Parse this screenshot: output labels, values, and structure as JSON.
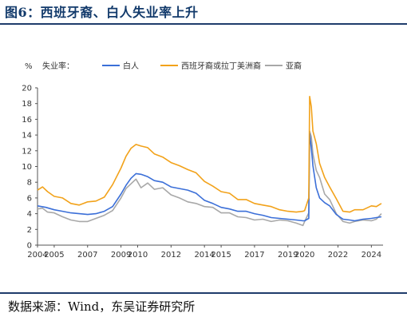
{
  "figure": {
    "title": "图6：西班牙裔、白人失业率上升",
    "source": "数据来源：Wind，东吴证券研究所"
  },
  "chart_data": {
    "type": "line",
    "unit_label": "%",
    "legend_title": "失业率：",
    "legend_placement": "top",
    "xlim": [
      2004,
      2024.7
    ],
    "ylim": [
      0,
      20
    ],
    "y_ticks": [
      0,
      2,
      4,
      6,
      8,
      10,
      12,
      14,
      16,
      18,
      20
    ],
    "x_ticks": [
      2004,
      2005,
      2007,
      2009,
      2010,
      2012,
      2014,
      2015,
      2017,
      2019,
      2020,
      2022,
      2024
    ],
    "x_tick_labels": [
      "2004",
      "2005",
      "2007",
      "2009",
      "2010",
      "2012",
      "2014",
      "2015",
      "2017",
      "2019",
      "2020",
      "2022",
      "2024"
    ],
    "grid": false,
    "series": [
      {
        "name": "白人",
        "color": "#3b6fd8",
        "points": [
          [
            2004.0,
            5.0
          ],
          [
            2004.5,
            4.8
          ],
          [
            2005.0,
            4.5
          ],
          [
            2005.5,
            4.3
          ],
          [
            2006.0,
            4.1
          ],
          [
            2006.5,
            4.0
          ],
          [
            2007.0,
            3.9
          ],
          [
            2007.5,
            4.0
          ],
          [
            2008.0,
            4.3
          ],
          [
            2008.5,
            4.9
          ],
          [
            2009.0,
            6.5
          ],
          [
            2009.3,
            7.6
          ],
          [
            2009.6,
            8.5
          ],
          [
            2009.9,
            9.1
          ],
          [
            2010.2,
            9.0
          ],
          [
            2010.6,
            8.7
          ],
          [
            2011.0,
            8.2
          ],
          [
            2011.5,
            8.0
          ],
          [
            2012.0,
            7.4
          ],
          [
            2012.5,
            7.2
          ],
          [
            2013.0,
            7.0
          ],
          [
            2013.5,
            6.6
          ],
          [
            2014.0,
            5.7
          ],
          [
            2014.5,
            5.3
          ],
          [
            2015.0,
            4.8
          ],
          [
            2015.5,
            4.6
          ],
          [
            2016.0,
            4.3
          ],
          [
            2016.5,
            4.3
          ],
          [
            2017.0,
            4.0
          ],
          [
            2017.5,
            3.8
          ],
          [
            2018.0,
            3.5
          ],
          [
            2018.5,
            3.4
          ],
          [
            2019.0,
            3.3
          ],
          [
            2019.5,
            3.2
          ],
          [
            2019.9,
            3.1
          ],
          [
            2020.0,
            3.1
          ],
          [
            2020.25,
            3.4
          ],
          [
            2020.3,
            14.2
          ],
          [
            2020.4,
            12.4
          ],
          [
            2020.5,
            10.1
          ],
          [
            2020.7,
            7.3
          ],
          [
            2020.9,
            6.0
          ],
          [
            2021.2,
            5.4
          ],
          [
            2021.5,
            5.0
          ],
          [
            2021.9,
            3.9
          ],
          [
            2022.3,
            3.3
          ],
          [
            2022.7,
            3.2
          ],
          [
            2023.0,
            3.1
          ],
          [
            2023.5,
            3.3
          ],
          [
            2024.0,
            3.4
          ],
          [
            2024.3,
            3.5
          ],
          [
            2024.6,
            3.6
          ]
        ]
      },
      {
        "name": "西班牙裔或拉丁美洲裔",
        "color": "#f2a21a",
        "points": [
          [
            2004.0,
            7.0
          ],
          [
            2004.3,
            7.4
          ],
          [
            2004.6,
            6.8
          ],
          [
            2005.0,
            6.2
          ],
          [
            2005.5,
            6.0
          ],
          [
            2006.0,
            5.3
          ],
          [
            2006.5,
            5.1
          ],
          [
            2007.0,
            5.5
          ],
          [
            2007.5,
            5.6
          ],
          [
            2008.0,
            6.1
          ],
          [
            2008.5,
            7.7
          ],
          [
            2009.0,
            9.8
          ],
          [
            2009.3,
            11.3
          ],
          [
            2009.6,
            12.3
          ],
          [
            2009.9,
            12.8
          ],
          [
            2010.2,
            12.6
          ],
          [
            2010.6,
            12.4
          ],
          [
            2011.0,
            11.6
          ],
          [
            2011.5,
            11.2
          ],
          [
            2012.0,
            10.5
          ],
          [
            2012.5,
            10.1
          ],
          [
            2013.0,
            9.6
          ],
          [
            2013.5,
            9.2
          ],
          [
            2014.0,
            8.1
          ],
          [
            2014.5,
            7.5
          ],
          [
            2015.0,
            6.8
          ],
          [
            2015.5,
            6.6
          ],
          [
            2016.0,
            5.8
          ],
          [
            2016.5,
            5.8
          ],
          [
            2017.0,
            5.3
          ],
          [
            2017.5,
            5.1
          ],
          [
            2018.0,
            4.9
          ],
          [
            2018.5,
            4.5
          ],
          [
            2019.0,
            4.3
          ],
          [
            2019.5,
            4.2
          ],
          [
            2019.9,
            4.3
          ],
          [
            2020.0,
            4.4
          ],
          [
            2020.25,
            6.0
          ],
          [
            2020.3,
            18.9
          ],
          [
            2020.4,
            17.6
          ],
          [
            2020.5,
            14.5
          ],
          [
            2020.7,
            12.9
          ],
          [
            2020.9,
            10.4
          ],
          [
            2021.2,
            8.6
          ],
          [
            2021.5,
            7.4
          ],
          [
            2021.9,
            5.9
          ],
          [
            2022.3,
            4.3
          ],
          [
            2022.7,
            4.2
          ],
          [
            2023.0,
            4.5
          ],
          [
            2023.5,
            4.5
          ],
          [
            2024.0,
            5.0
          ],
          [
            2024.3,
            4.9
          ],
          [
            2024.6,
            5.3
          ]
        ]
      },
      {
        "name": "亚裔",
        "color": "#a8a8a8",
        "points": [
          [
            2004.0,
            4.6
          ],
          [
            2004.3,
            4.7
          ],
          [
            2004.6,
            4.2
          ],
          [
            2005.0,
            4.1
          ],
          [
            2005.5,
            3.6
          ],
          [
            2006.0,
            3.2
          ],
          [
            2006.5,
            3.0
          ],
          [
            2007.0,
            3.0
          ],
          [
            2007.5,
            3.4
          ],
          [
            2008.0,
            3.8
          ],
          [
            2008.5,
            4.4
          ],
          [
            2009.0,
            6.0
          ],
          [
            2009.3,
            7.2
          ],
          [
            2009.6,
            7.8
          ],
          [
            2009.9,
            8.4
          ],
          [
            2010.2,
            7.3
          ],
          [
            2010.6,
            7.9
          ],
          [
            2011.0,
            7.1
          ],
          [
            2011.5,
            7.3
          ],
          [
            2012.0,
            6.4
          ],
          [
            2012.5,
            6.0
          ],
          [
            2013.0,
            5.5
          ],
          [
            2013.5,
            5.3
          ],
          [
            2014.0,
            4.9
          ],
          [
            2014.5,
            4.8
          ],
          [
            2015.0,
            4.1
          ],
          [
            2015.5,
            4.1
          ],
          [
            2016.0,
            3.6
          ],
          [
            2016.5,
            3.5
          ],
          [
            2017.0,
            3.2
          ],
          [
            2017.5,
            3.3
          ],
          [
            2018.0,
            3.0
          ],
          [
            2018.5,
            3.2
          ],
          [
            2019.0,
            3.1
          ],
          [
            2019.5,
            2.8
          ],
          [
            2019.9,
            2.5
          ],
          [
            2020.0,
            3.0
          ],
          [
            2020.25,
            4.1
          ],
          [
            2020.3,
            14.5
          ],
          [
            2020.4,
            13.8
          ],
          [
            2020.5,
            11.6
          ],
          [
            2020.7,
            9.5
          ],
          [
            2020.9,
            8.6
          ],
          [
            2021.2,
            6.5
          ],
          [
            2021.5,
            5.8
          ],
          [
            2021.9,
            4.0
          ],
          [
            2022.3,
            3.0
          ],
          [
            2022.7,
            2.8
          ],
          [
            2023.0,
            3.0
          ],
          [
            2023.5,
            3.2
          ],
          [
            2024.0,
            3.1
          ],
          [
            2024.3,
            3.3
          ],
          [
            2024.6,
            4.0
          ]
        ]
      }
    ]
  }
}
